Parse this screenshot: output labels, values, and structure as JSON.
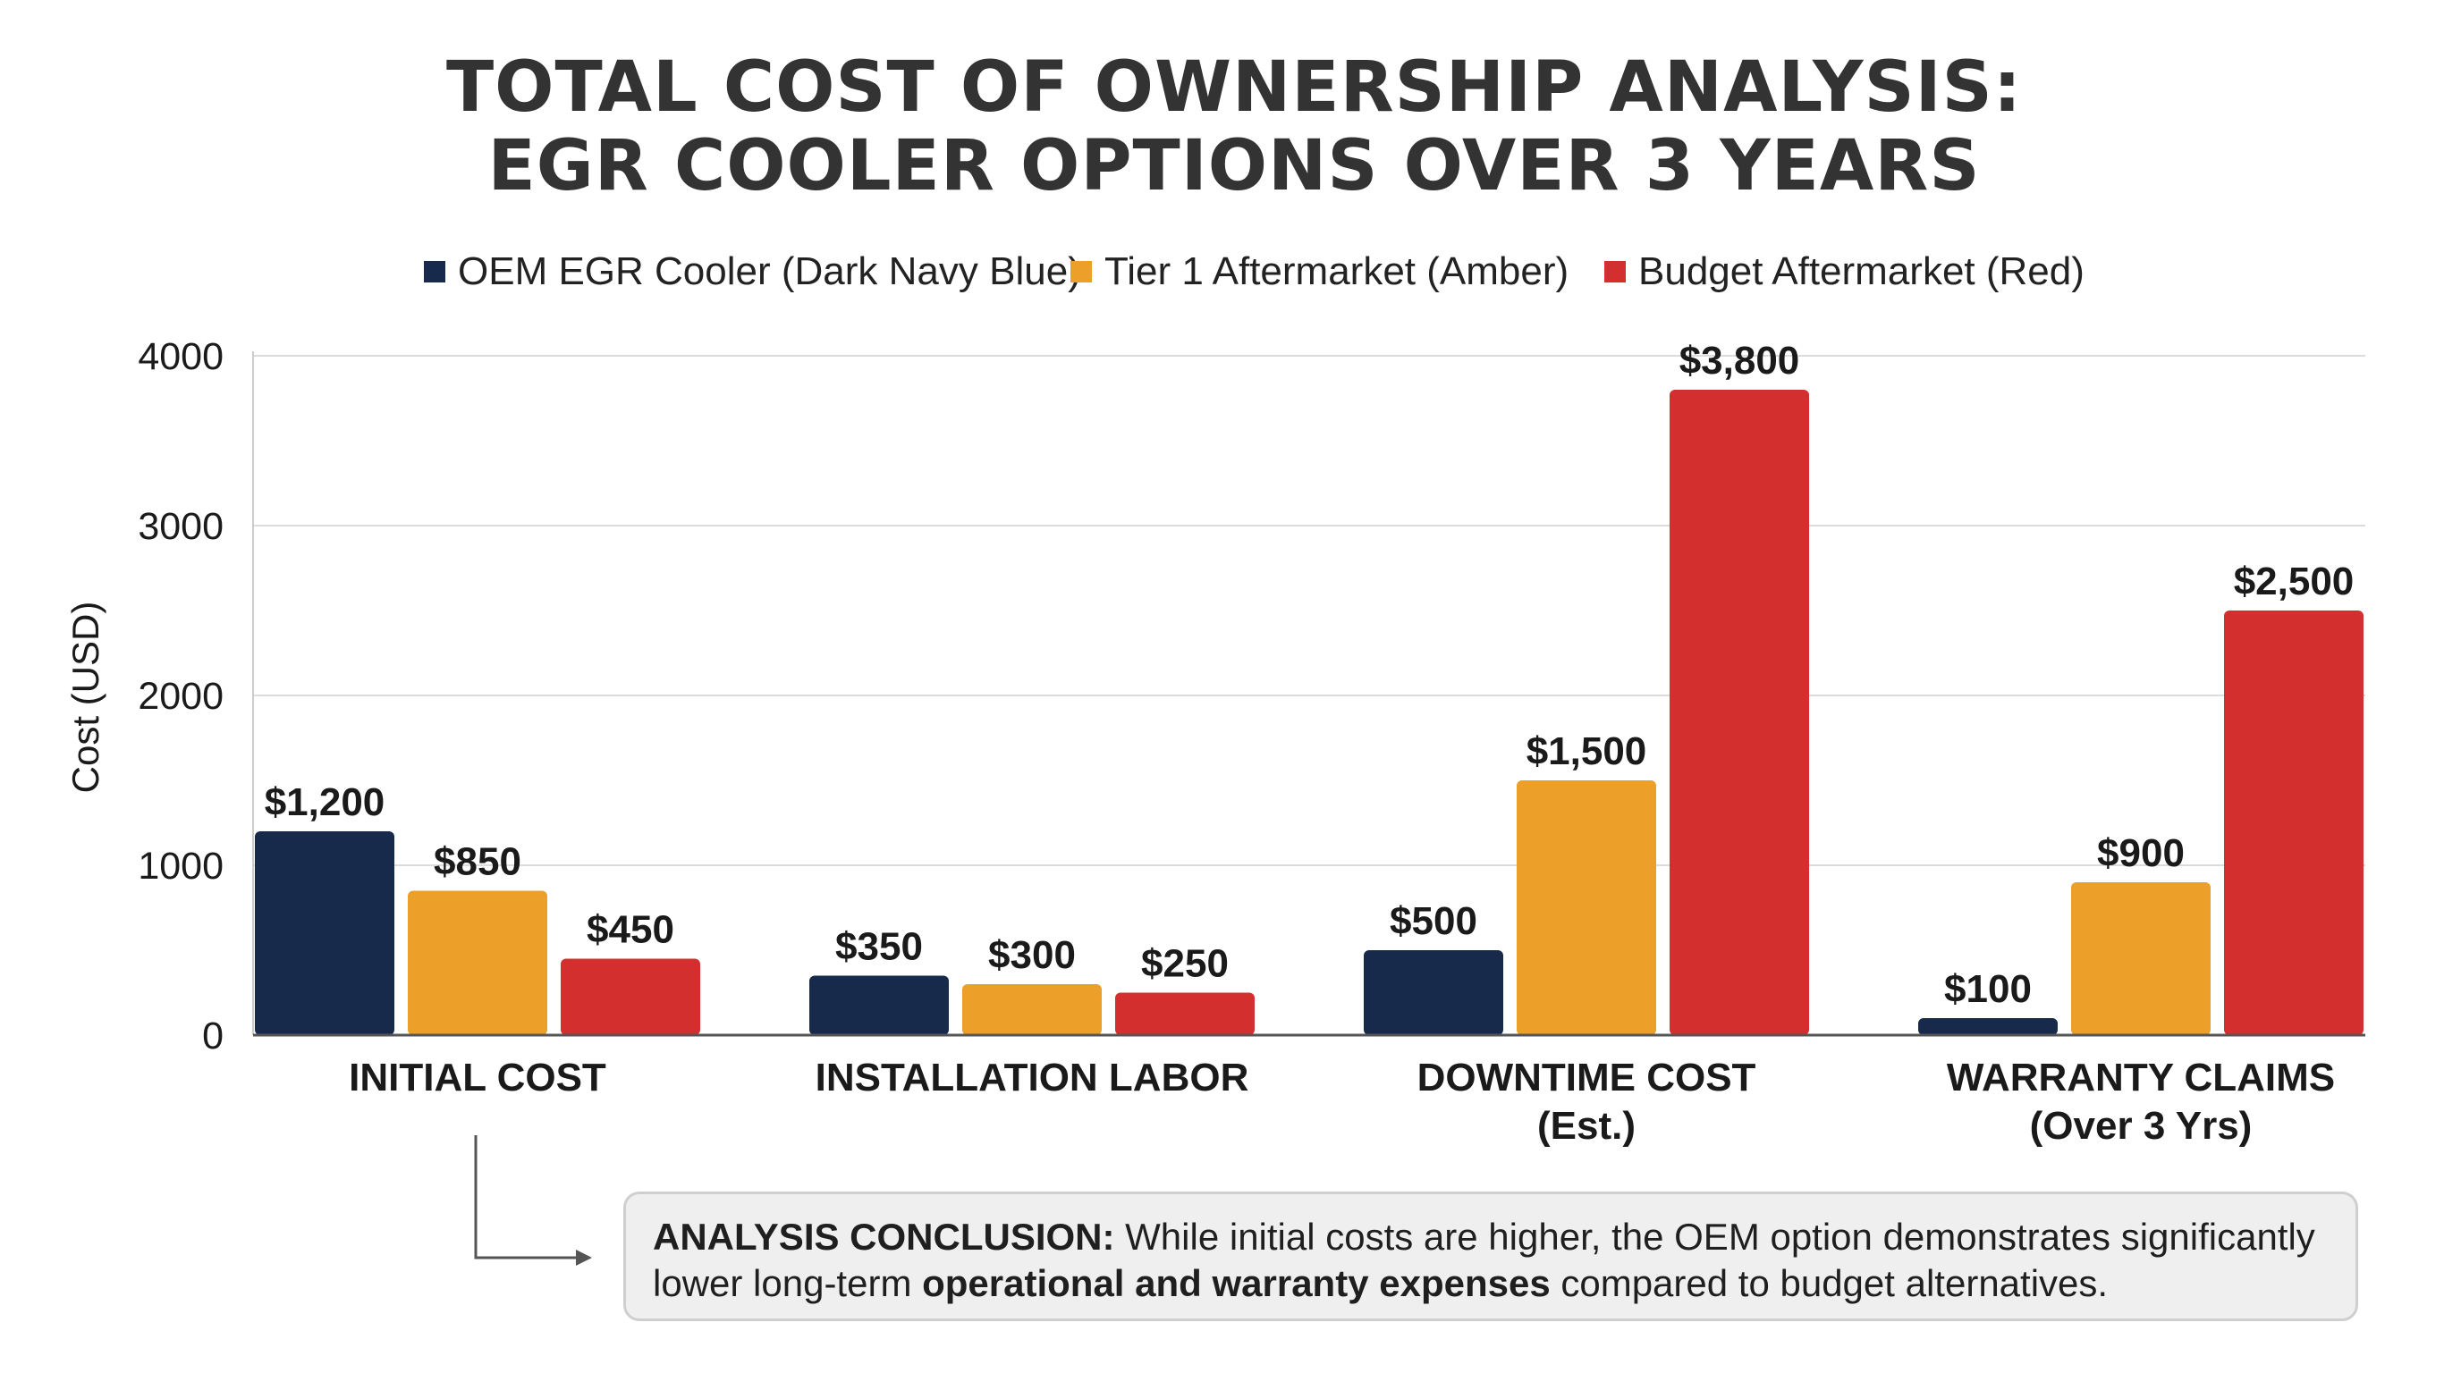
{
  "title": {
    "line1": "TOTAL COST OF OWNERSHIP ANALYSIS:",
    "line2": "EGR COOLER OPTIONS OVER 3 YEARS"
  },
  "colors": {
    "oem": "#172a4b",
    "tier1": "#eca02a",
    "budget": "#d42f2f"
  },
  "chart_data": {
    "type": "bar",
    "categories": [
      [
        "INITIAL COST"
      ],
      [
        "INSTALLATION LABOR"
      ],
      [
        "DOWNTIME COST",
        "(Est.)"
      ],
      [
        "WARRANTY CLAIMS",
        "(Over 3 Yrs)"
      ]
    ],
    "series": [
      {
        "name": "OEM EGR Cooler (Dark Navy Blue)",
        "color": "#172a4b",
        "values": [
          1200,
          350,
          500,
          100
        ],
        "labels": [
          "$1,200",
          "$350",
          "$500",
          "$100"
        ]
      },
      {
        "name": "Tier 1 Aftermarket (Amber)",
        "color": "#eca02a",
        "values": [
          850,
          300,
          1500,
          900
        ],
        "labels": [
          "$850",
          "$300",
          "$1,500",
          "$900"
        ]
      },
      {
        "name": "Budget Aftermarket (Red)",
        "color": "#d42f2f",
        "values": [
          450,
          250,
          3800,
          2500
        ],
        "labels": [
          "$450",
          "$250",
          "$3,800",
          "$2,500"
        ]
      }
    ],
    "ylabel": "Cost (USD)",
    "ylim": [
      0,
      4000
    ],
    "yticks": [
      0,
      1000,
      2000,
      3000,
      4000
    ],
    "grid": true,
    "legend_position": "top-center"
  },
  "conclusion": {
    "lead": "ANALYSIS CONCLUSION:",
    "text1": " While initial costs are higher, the OEM option demonstrates significantly lower long-term ",
    "emphasis": "operational and warranty expenses",
    "text2": " compared to budget alternatives."
  }
}
